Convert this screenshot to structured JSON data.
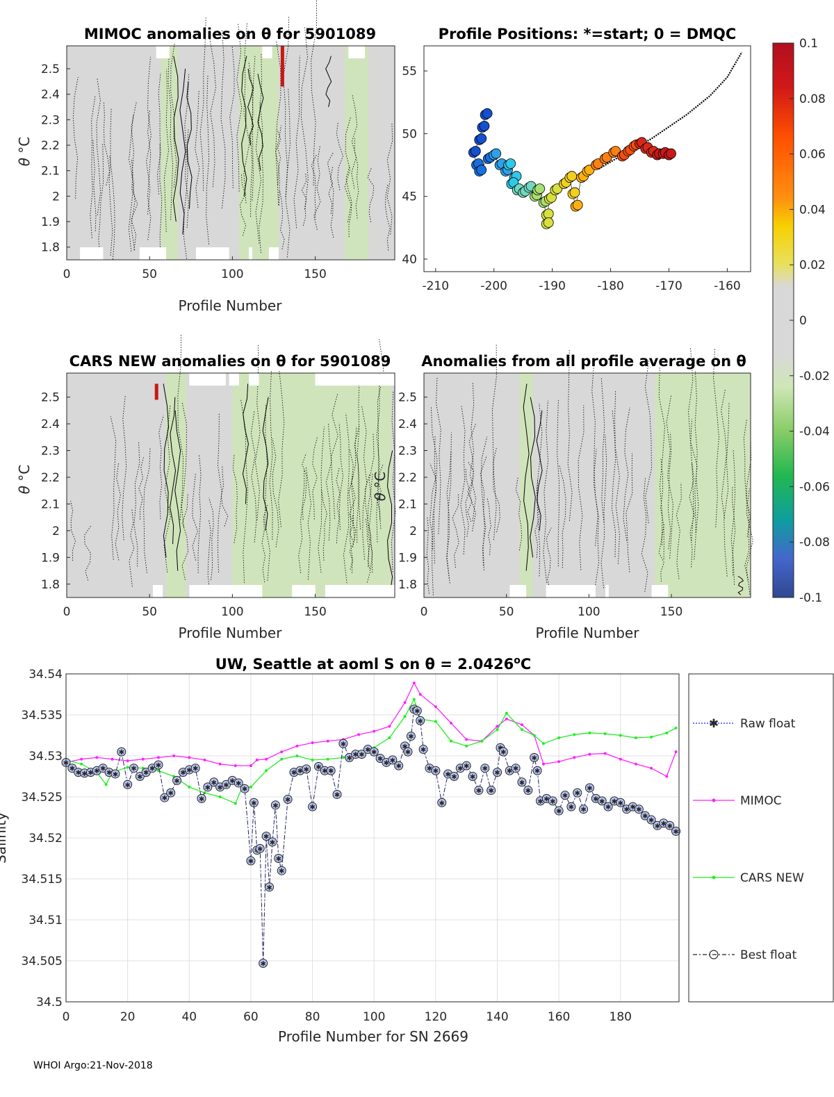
{
  "page": {
    "footer": "WHOI Argo:21-Nov-2018"
  },
  "colors": {
    "contour_bg": "#d8d8d8",
    "band_green": "#cfe6b6",
    "mimoc": "#ff22ff",
    "cars": "#22ee22",
    "float": "#1a1aff"
  },
  "chart_data": [
    {
      "id": "mimoc",
      "type": "heatmap",
      "title": "MIMOC anomalies on θ  for 5901089",
      "xlabel": "Profile Number",
      "ylabel": "θ °C",
      "ylabel_main": "θ ",
      "ylabel_unit": "°C",
      "xlim": [
        0,
        198
      ],
      "ylim": [
        1.75,
        2.59
      ],
      "xticks": [
        0,
        50,
        100,
        150
      ],
      "yticks": [
        1.8,
        1.9,
        2,
        2.1,
        2.2,
        2.3,
        2.4,
        2.5
      ],
      "ytick_labels": [
        "1.8",
        "1.9",
        "2",
        "2.1",
        "2.2",
        "2.3",
        "2.4",
        "2.5"
      ],
      "green_bands": [
        [
          57,
          67
        ],
        [
          104,
          128
        ],
        [
          168,
          182
        ]
      ],
      "hot_spot": {
        "profile": 130,
        "theta_range": [
          2.43,
          2.59
        ]
      },
      "missing_top": [
        [
          54,
          62
        ],
        [
          118,
          124
        ],
        [
          170,
          180
        ]
      ],
      "missing_bottom": [
        [
          8,
          22
        ],
        [
          44,
          60
        ],
        [
          78,
          98
        ],
        [
          110,
          112
        ],
        [
          122,
          128
        ]
      ],
      "contours": [
        {
          "x": 66,
          "y0": 1.9,
          "y1": 2.55
        },
        {
          "x": 70,
          "y0": 1.85,
          "y1": 2.5
        },
        {
          "x": 74,
          "y0": 1.95,
          "y1": 2.45
        },
        {
          "x": 107,
          "y0": 2.0,
          "y1": 2.55
        },
        {
          "x": 111,
          "y0": 2.2,
          "y1": 2.5
        },
        {
          "x": 117,
          "y0": 2.1,
          "y1": 2.48
        },
        {
          "x": 158,
          "y0": 2.35,
          "y1": 2.55
        }
      ]
    },
    {
      "id": "positions",
      "type": "scatter",
      "title": "Profile Positions: *=start; 0 = DMQC",
      "xlim": [
        -212,
        -156
      ],
      "ylim": [
        39,
        57
      ],
      "xticks": [
        -210,
        -200,
        -190,
        -180,
        -170,
        -160
      ],
      "yticks": [
        40,
        45,
        50,
        55
      ],
      "track": [
        [
          -201.5,
          51.5
        ],
        [
          -202,
          50.5
        ],
        [
          -202.5,
          49.5
        ],
        [
          -203.5,
          48.5
        ],
        [
          -203,
          47.5
        ],
        [
          -202.5,
          47
        ],
        [
          -201,
          48
        ],
        [
          -200,
          48.3
        ],
        [
          -199,
          47.5
        ],
        [
          -198,
          47
        ],
        [
          -197.5,
          47.5
        ],
        [
          -196.5,
          46.5
        ],
        [
          -197,
          46
        ],
        [
          -196,
          45.5
        ],
        [
          -195,
          45.3
        ],
        [
          -194,
          45.7
        ],
        [
          -193,
          45
        ],
        [
          -192.5,
          45.5
        ],
        [
          -191.5,
          44.5
        ],
        [
          -191,
          43.5
        ],
        [
          -191,
          42.8
        ],
        [
          -190.5,
          44.8
        ],
        [
          -189.5,
          45.5
        ],
        [
          -188,
          46
        ],
        [
          -187,
          46.5
        ],
        [
          -186.5,
          45.2
        ],
        [
          -186,
          44.2
        ],
        [
          -185,
          46.5
        ],
        [
          -184,
          47
        ],
        [
          -182.5,
          47.5
        ],
        [
          -181,
          48
        ],
        [
          -179.5,
          48.5
        ],
        [
          -178,
          48.2
        ],
        [
          -177,
          48.6
        ],
        [
          -176,
          49
        ],
        [
          -175,
          49.2
        ],
        [
          -174,
          48.8
        ],
        [
          -173,
          48.5
        ],
        [
          -172,
          48.3
        ],
        [
          -171,
          48.4
        ],
        [
          -170,
          48.3
        ]
      ],
      "coastline_segments": [
        [
          [
            -182,
            47.2
          ],
          [
            -178,
            48.3
          ],
          [
            -173,
            49.6
          ],
          [
            -167,
            51.5
          ],
          [
            -163,
            53
          ],
          [
            -160,
            54.5
          ],
          [
            -157.5,
            56.5
          ]
        ]
      ]
    },
    {
      "id": "colorbar",
      "type": "heatmap",
      "clim": [
        -0.1,
        0.1
      ],
      "tick_values": [
        0.1,
        0.08,
        0.06,
        0.04,
        0.02,
        0,
        -0.02,
        -0.04,
        -0.06,
        -0.08,
        -0.1
      ],
      "tick_labels": [
        "0.1",
        "0.08",
        "0.06",
        "0.04",
        "0.02",
        "0",
        "-0.02",
        "-0.04",
        "-0.06",
        "-0.08",
        "-0.1"
      ]
    },
    {
      "id": "cars",
      "type": "heatmap",
      "title": "CARS NEW anomalies on θ for 5901089",
      "xlabel": "Profile Number",
      "ylabel": "θ °C",
      "ylabel_main": "θ ",
      "ylabel_unit": "°C",
      "xlim": [
        0,
        198
      ],
      "ylim": [
        1.75,
        2.59
      ],
      "xticks": [
        0,
        50,
        100,
        150
      ],
      "yticks": [
        1.8,
        1.9,
        2,
        2.1,
        2.2,
        2.3,
        2.4,
        2.5
      ],
      "ytick_labels": [
        "1.8",
        "1.9",
        "2",
        "2.1",
        "2.2",
        "2.3",
        "2.4",
        "2.5"
      ],
      "green_bands": [
        [
          60,
          72
        ],
        [
          100,
          196
        ]
      ],
      "hot_spot": {
        "profile": 54,
        "theta_range": [
          2.49,
          2.55
        ]
      },
      "missing_top": [
        [
          74,
          96
        ],
        [
          98,
          104
        ],
        [
          110,
          116
        ],
        [
          150,
          198
        ]
      ],
      "missing_bottom": [
        [
          52,
          58
        ],
        [
          74,
          118
        ],
        [
          136,
          150
        ],
        [
          156,
          198
        ]
      ],
      "contours": [
        {
          "x": 60,
          "y0": 1.9,
          "y1": 2.55
        },
        {
          "x": 64,
          "y0": 1.95,
          "y1": 2.5
        },
        {
          "x": 67,
          "y0": 1.85,
          "y1": 2.45
        },
        {
          "x": 108,
          "y0": 2.1,
          "y1": 2.55
        },
        {
          "x": 120,
          "y0": 2.0,
          "y1": 2.5
        },
        {
          "x": 195,
          "y0": 1.76,
          "y1": 2.3
        }
      ]
    },
    {
      "id": "allprof",
      "type": "heatmap",
      "title": "Anomalies from all profile average on θ",
      "xlabel": "Profile Number",
      "ylabel": "θ °C",
      "ylabel_main": "θ ",
      "ylabel_unit": "°C",
      "xlim": [
        0,
        198
      ],
      "ylim": [
        1.75,
        2.59
      ],
      "xticks": [
        0,
        50,
        100,
        150
      ],
      "yticks": [
        1.8,
        1.9,
        2,
        2.1,
        2.2,
        2.3,
        2.4,
        2.5
      ],
      "ytick_labels": [
        "1.8",
        "1.9",
        "2",
        "2.1",
        "2.2",
        "2.3",
        "2.4",
        "2.5"
      ],
      "green_bands": [
        [
          58,
          66
        ],
        [
          140,
          198
        ]
      ],
      "hot_spot": null,
      "missing_top": [],
      "missing_bottom": [
        [
          52,
          62
        ],
        [
          74,
          104
        ],
        [
          110,
          112
        ],
        [
          138,
          148
        ]
      ],
      "contours": [
        {
          "x": 62,
          "y0": 1.85,
          "y1": 2.55
        },
        {
          "x": 66,
          "y0": 1.9,
          "y1": 2.5
        },
        {
          "x": 70,
          "y0": 2.0,
          "y1": 2.45
        },
        {
          "x": 192,
          "y0": 1.76,
          "y1": 1.83
        }
      ]
    },
    {
      "id": "salinity",
      "type": "line",
      "title": "UW, Seattle at aoml S on θ = 2.0426°C",
      "title_main": "UW, Seattle at aoml S on θ = 2.0426",
      "title_sup": "o",
      "title_end": "C",
      "xlabel": "Profile Number for SN 2669",
      "ylabel": "Salinity",
      "xlim": [
        0,
        199
      ],
      "ylim": [
        34.5,
        34.54
      ],
      "xticks": [
        0,
        20,
        40,
        60,
        80,
        100,
        120,
        140,
        160,
        180
      ],
      "yticks": [
        34.5,
        34.505,
        34.51,
        34.515,
        34.52,
        34.525,
        34.53,
        34.535,
        34.54
      ],
      "ytick_labels": [
        "34.5",
        "34.505",
        "34.51",
        "34.515",
        "34.52",
        "34.525",
        "34.53",
        "34.535",
        "34.54"
      ],
      "legend": [
        "Raw float",
        "MIMOC",
        "CARS NEW",
        "Best float"
      ],
      "series": [
        {
          "name": "MIMOC",
          "x": [
            0,
            5,
            10,
            15,
            20,
            25,
            30,
            35,
            40,
            45,
            50,
            55,
            60,
            62,
            65,
            70,
            75,
            80,
            85,
            90,
            95,
            100,
            105,
            110,
            113,
            115,
            120,
            125,
            130,
            135,
            140,
            143,
            148,
            152,
            155,
            160,
            165,
            170,
            175,
            180,
            185,
            190,
            195,
            198
          ],
          "y": [
            34.5292,
            34.5296,
            34.5298,
            34.5296,
            34.5294,
            34.5296,
            34.5298,
            34.53,
            34.5298,
            34.5295,
            34.529,
            34.5288,
            34.5288,
            34.5295,
            34.5296,
            34.5305,
            34.5312,
            34.5316,
            34.5318,
            34.532,
            34.5326,
            34.533,
            34.5336,
            34.5365,
            34.5389,
            34.5375,
            34.536,
            34.534,
            34.532,
            34.5318,
            34.5336,
            34.5345,
            34.5338,
            34.5325,
            34.529,
            34.5293,
            34.5298,
            34.5302,
            34.5303,
            34.5296,
            34.529,
            34.5285,
            34.5275,
            34.5305
          ]
        },
        {
          "name": "CARS NEW",
          "x": [
            0,
            5,
            10,
            13,
            15,
            20,
            25,
            30,
            35,
            40,
            45,
            50,
            55,
            57,
            60,
            65,
            70,
            75,
            80,
            85,
            90,
            95,
            100,
            105,
            110,
            113,
            115,
            120,
            125,
            130,
            135,
            140,
            143,
            148,
            152,
            155,
            160,
            165,
            170,
            175,
            180,
            185,
            190,
            195,
            198
          ],
          "y": [
            34.5295,
            34.529,
            34.528,
            34.5265,
            34.528,
            34.5286,
            34.5285,
            34.5282,
            34.5275,
            34.5262,
            34.5255,
            34.525,
            34.5242,
            34.526,
            34.5262,
            34.5282,
            34.5296,
            34.53,
            34.5295,
            34.5296,
            34.5298,
            34.5305,
            34.531,
            34.5322,
            34.5348,
            34.5369,
            34.5345,
            34.5342,
            34.5318,
            34.5312,
            34.5318,
            34.5332,
            34.5352,
            34.5332,
            34.5325,
            34.5315,
            34.5322,
            34.5326,
            34.5328,
            34.5327,
            34.5325,
            34.5322,
            34.5323,
            34.5328,
            34.5334
          ]
        },
        {
          "name": "Best float",
          "x": [
            0,
            2,
            4,
            6,
            8,
            10,
            12,
            14,
            16,
            18,
            20,
            22,
            24,
            26,
            28,
            30,
            32,
            34,
            36,
            38,
            40,
            42,
            44,
            46,
            48,
            50,
            52,
            54,
            56,
            58,
            60,
            61,
            62,
            63,
            64,
            65,
            66,
            67,
            68,
            69,
            70,
            72,
            74,
            76,
            78,
            80,
            82,
            84,
            86,
            88,
            90,
            92,
            94,
            96,
            98,
            100,
            102,
            104,
            106,
            108,
            110,
            111,
            112,
            113,
            114,
            115,
            116,
            118,
            120,
            122,
            124,
            126,
            128,
            130,
            132,
            134,
            136,
            138,
            140,
            141,
            142,
            144,
            146,
            148,
            150,
            152,
            153,
            154,
            156,
            158,
            160,
            162,
            164,
            166,
            168,
            170,
            172,
            174,
            176,
            178,
            180,
            182,
            184,
            186,
            188,
            190,
            192,
            194,
            196,
            198
          ],
          "y": [
            34.5292,
            34.5285,
            34.528,
            34.5279,
            34.528,
            34.5282,
            34.5285,
            34.528,
            34.5278,
            34.5305,
            34.5265,
            34.5285,
            34.5275,
            34.528,
            34.5285,
            34.5289,
            34.5249,
            34.5255,
            34.527,
            34.528,
            34.5283,
            34.5285,
            34.5248,
            34.5262,
            34.5268,
            34.5262,
            34.5265,
            34.527,
            34.5267,
            34.526,
            34.5172,
            34.5243,
            34.5185,
            34.5187,
            34.5047,
            34.5202,
            34.514,
            34.5195,
            34.524,
            34.5175,
            34.516,
            34.5247,
            34.528,
            34.5282,
            34.5284,
            34.5238,
            34.5287,
            34.5282,
            34.5282,
            34.5253,
            34.5315,
            34.5298,
            34.5302,
            34.5302,
            34.5308,
            34.5305,
            34.5297,
            34.5292,
            34.5295,
            34.5288,
            34.5312,
            34.5305,
            34.5324,
            34.5357,
            34.5355,
            34.5343,
            34.5308,
            34.5285,
            34.5282,
            34.5243,
            34.5278,
            34.5275,
            34.5285,
            34.5288,
            34.5275,
            34.5258,
            34.5285,
            34.5258,
            34.528,
            34.531,
            34.5305,
            34.5282,
            34.5285,
            34.5268,
            34.5258,
            34.5298,
            34.5282,
            34.5245,
            34.5248,
            34.5245,
            34.5233,
            34.5252,
            34.5238,
            34.5255,
            34.5235,
            34.5261,
            34.5248,
            34.5245,
            34.5238,
            34.5245,
            34.5243,
            34.5235,
            34.5238,
            34.5235,
            34.5227,
            34.5222,
            34.5215,
            34.5218,
            34.5215,
            34.5208
          ]
        }
      ]
    }
  ]
}
